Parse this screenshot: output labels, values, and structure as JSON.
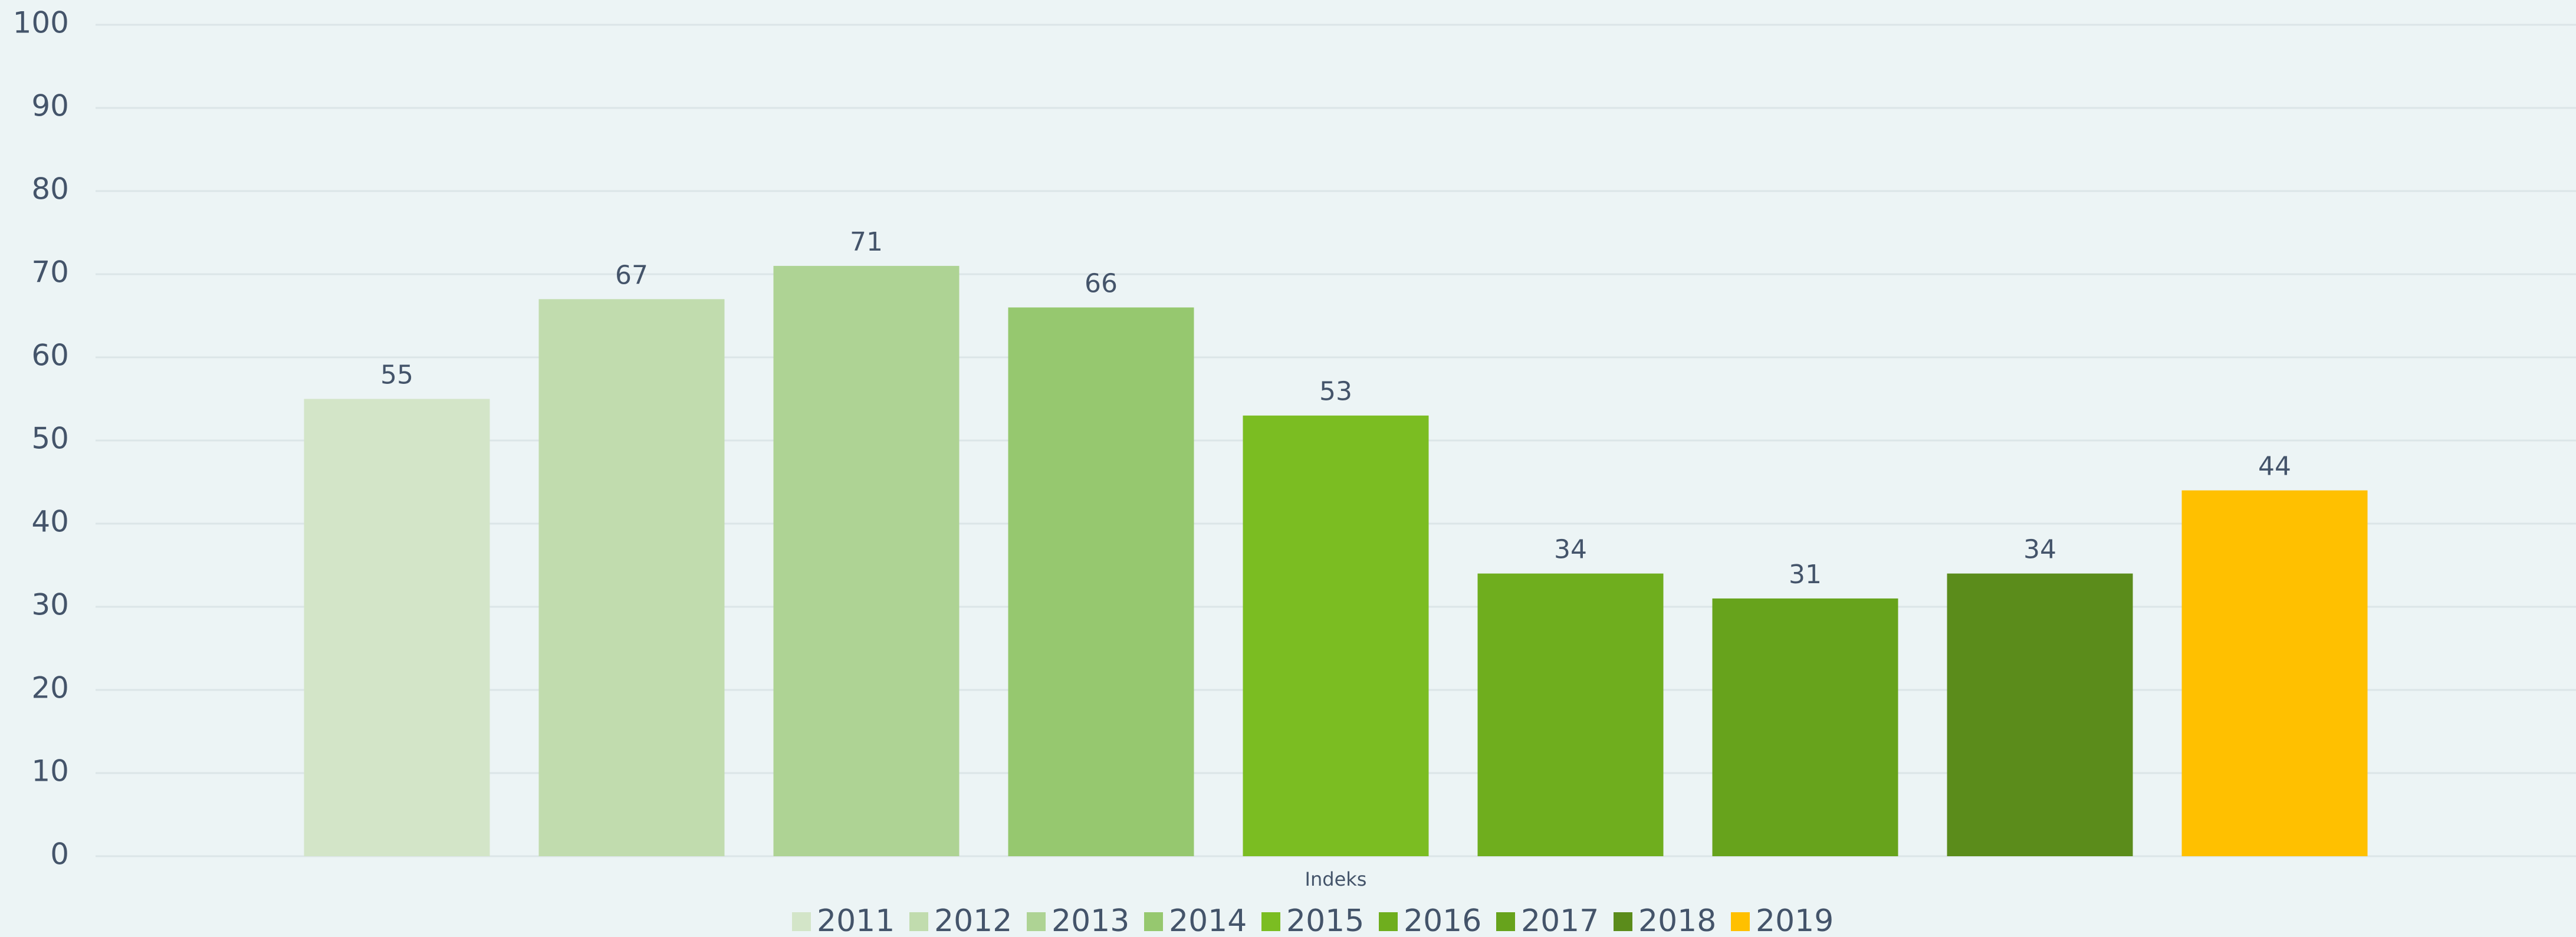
{
  "chart_data": {
    "type": "bar",
    "categories": [
      "Indeks"
    ],
    "series": [
      {
        "name": "2011",
        "color": "#d3e5c8",
        "values": [
          55
        ]
      },
      {
        "name": "2012",
        "color": "#c1dcae",
        "values": [
          67
        ]
      },
      {
        "name": "2013",
        "color": "#aed394",
        "values": [
          71
        ]
      },
      {
        "name": "2014",
        "color": "#96c86f",
        "values": [
          66
        ]
      },
      {
        "name": "2015",
        "color": "#7bbd22",
        "values": [
          53
        ]
      },
      {
        "name": "2016",
        "color": "#6fae1e",
        "values": [
          34
        ]
      },
      {
        "name": "2017",
        "color": "#67a31c",
        "values": [
          31
        ]
      },
      {
        "name": "2018",
        "color": "#5b8c1b",
        "values": [
          34
        ]
      },
      {
        "name": "2019",
        "color": "#ffc000",
        "values": [
          44
        ]
      }
    ],
    "ylim": [
      0,
      100
    ],
    "yticks": [
      0,
      10,
      20,
      30,
      40,
      50,
      60,
      70,
      80,
      90,
      100
    ],
    "grid": true,
    "legend": "bottom"
  }
}
